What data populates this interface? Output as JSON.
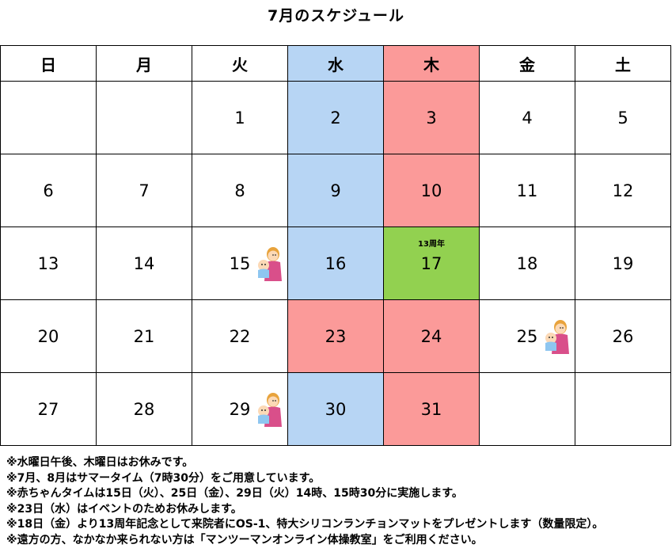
{
  "title": "7月のスケジュール",
  "weekdays": [
    "日",
    "月",
    "火",
    "水",
    "木",
    "金",
    "土"
  ],
  "weeks": [
    [
      "",
      "",
      "1",
      "2",
      "3",
      "4",
      "5"
    ],
    [
      "6",
      "7",
      "8",
      "9",
      "10",
      "11",
      "12"
    ],
    [
      "13",
      "14",
      "15",
      "16",
      "17",
      "18",
      "19"
    ],
    [
      "20",
      "21",
      "22",
      "23",
      "24",
      "25",
      "26"
    ],
    [
      "27",
      "28",
      "29",
      "30",
      "31",
      "",
      ""
    ]
  ],
  "event_label": "13周年",
  "colors": {
    "wednesday": "#b7d5f4",
    "thursday": "#fb9a99",
    "anniversary": "#92d150"
  },
  "icons": {
    "baby_time": "mother-baby-icon"
  },
  "notes": [
    "※水曜日午後、木曜日はお休みです。",
    "※7月、8月はサマータイム（7時30分）をご用意しています。",
    "※赤ちゃんタイムは15日（火）、25日（金）、29日（火）14時、15時30分に実施します。",
    "※23日（水）はイベントのためお休みします。",
    "※18日（金）より13周年記念として来院者にOS-1、特大シリコンランチョンマットをプレゼントします（数量限定）。",
    "※遠方の方、なかなか来られない方は「マンツーマンオンライン体操教室」をご利用ください。"
  ]
}
